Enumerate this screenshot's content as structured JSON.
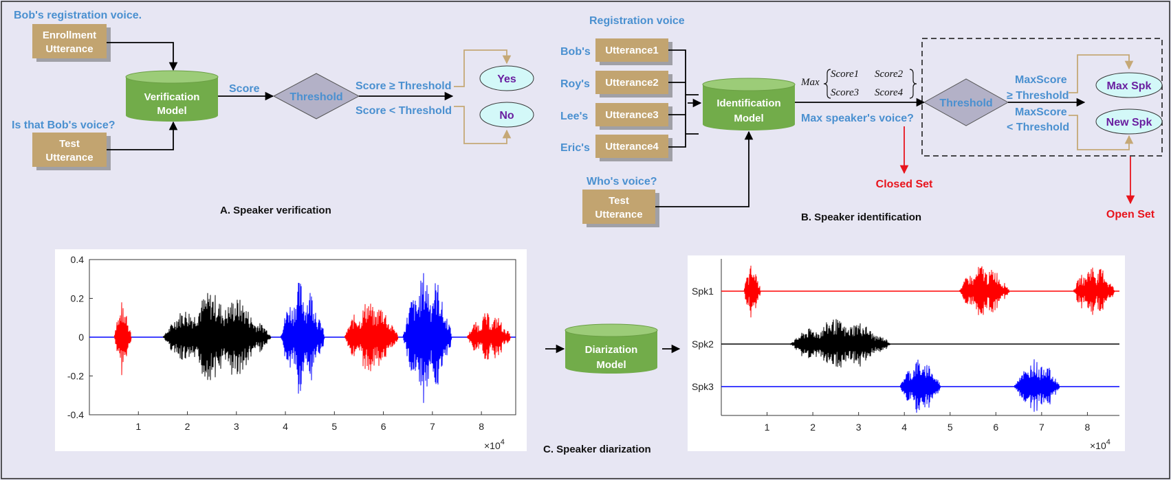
{
  "section_a": {
    "bob_registration": "Bob's registration voice.",
    "enrollment_l1": "Enrollment",
    "enrollment_l2": "Utterance",
    "is_that_bob": "Is that Bob's voice?",
    "test_l1": "Test",
    "test_l2": "Utterance",
    "model_l1": "Verification",
    "model_l2": "Model",
    "score": "Score",
    "threshold": "Threshold",
    "score_ge": "Score ≥ Threshold",
    "score_lt": "Score <  Threshold",
    "yes": "Yes",
    "no": "No",
    "caption": "A.  Speaker verification"
  },
  "section_b": {
    "registration_voice": "Registration voice",
    "speakers": [
      {
        "name": "Bob's",
        "utterance": "Utterance1"
      },
      {
        "name": "Roy's",
        "utterance": "Utterance2"
      },
      {
        "name": "Lee's",
        "utterance": "Utterance3"
      },
      {
        "name": "Eric's",
        "utterance": "Utterance4"
      }
    ],
    "whos_voice": "Who's voice?",
    "test_l1": "Test",
    "test_l2": "Utterance",
    "model_l1": "Identification",
    "model_l2": "Model",
    "max_label": "Max",
    "scores": [
      "Score1",
      "Score2",
      "Score3",
      "Score4"
    ],
    "max_speaker": "Max speaker's voice?",
    "closed_set": "Closed Set",
    "threshold": "Threshold",
    "maxscore_ge_l1": "MaxScore",
    "maxscore_ge_l2": "≥ Threshold",
    "maxscore_lt_l1": "MaxScore",
    "maxscore_lt_l2": "<  Threshold",
    "max_spk": "Max Spk",
    "new_spk": "New Spk",
    "open_set": "Open Set",
    "caption": "B.  Speaker identification"
  },
  "section_c": {
    "model_l1": "Diarization",
    "model_l2": "Model",
    "caption": "C.  Speaker diarization",
    "colors": {
      "red": "#ff0000",
      "black": "#000000",
      "blue": "#0000ff"
    }
  },
  "chart_data": [
    {
      "type": "line",
      "title": "",
      "xlabel": "×10^4",
      "ylabel": "",
      "x_ticks": [
        1,
        2,
        3,
        4,
        5,
        6,
        7,
        8
      ],
      "y_ticks": [
        0.4,
        0.2,
        0,
        -0.2,
        -0.4
      ],
      "y_tick_labels": [
        "0.4",
        "0.2",
        "0",
        "-0.2",
        "-0.4"
      ],
      "xlim": [
        0,
        8.7
      ],
      "ylim": [
        -0.4,
        0.4
      ],
      "x_exponent": "4",
      "segments": [
        {
          "color": "red",
          "start": 0.5,
          "end": 0.85,
          "peak": 0.19
        },
        {
          "color": "black",
          "start": 1.5,
          "end": 3.7,
          "peak": 0.24
        },
        {
          "color": "blue",
          "start": 3.9,
          "end": 4.8,
          "peak": 0.3
        },
        {
          "color": "red",
          "start": 5.2,
          "end": 6.3,
          "peak": 0.2
        },
        {
          "color": "blue",
          "start": 6.4,
          "end": 7.4,
          "peak": 0.35
        },
        {
          "color": "red",
          "start": 7.7,
          "end": 8.6,
          "peak": 0.13
        }
      ]
    },
    {
      "type": "line",
      "title": "",
      "xlabel": "×10^4",
      "x_ticks": [
        1,
        2,
        3,
        4,
        5,
        6,
        7,
        8
      ],
      "xlim": [
        0,
        8.7
      ],
      "x_exponent": "4",
      "series": [
        {
          "name": "Spk1",
          "color": "red",
          "segments": [
            [
              0.5,
              0.85
            ],
            [
              5.2,
              6.3
            ],
            [
              7.7,
              8.6
            ]
          ]
        },
        {
          "name": "Spk2",
          "color": "black",
          "segments": [
            [
              1.5,
              3.7
            ]
          ]
        },
        {
          "name": "Spk3",
          "color": "blue",
          "segments": [
            [
              3.9,
              4.8
            ],
            [
              6.4,
              7.4
            ]
          ]
        }
      ]
    }
  ]
}
